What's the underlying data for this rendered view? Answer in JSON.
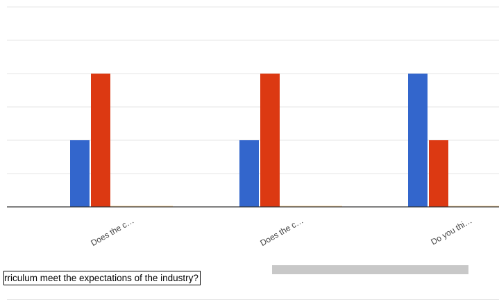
{
  "chart_data": {
    "type": "bar",
    "categories": [
      "Does the c…",
      "Does the c…",
      "Do you thi…"
    ],
    "series": [
      {
        "values": [
          2,
          2,
          4
        ],
        "color": "#3366cc"
      },
      {
        "values": [
          4,
          4,
          2
        ],
        "color": "#dc3912"
      },
      {
        "values": [
          0,
          0,
          0
        ],
        "color": "#ff9900"
      }
    ],
    "ylim": [
      0,
      6
    ],
    "grid": true,
    "grid_color": "#e6e6e6",
    "axis_color": "#333333",
    "legend": "none",
    "title": "",
    "xlabel": "",
    "ylabel": ""
  },
  "tooltip": {
    "text": "rriculum meet the expectations of the industry?"
  }
}
